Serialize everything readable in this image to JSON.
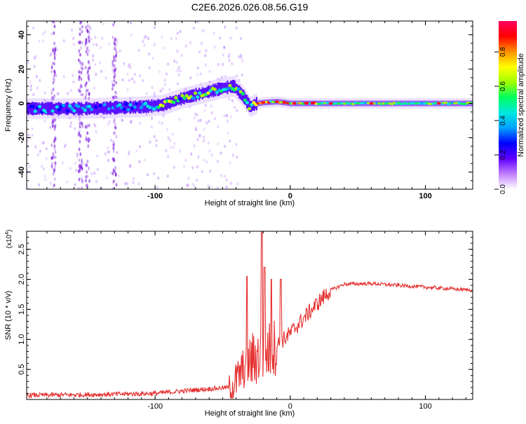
{
  "title": "C2E6.2026.026.08.56.G19",
  "chart_data": [
    {
      "type": "heatmap",
      "name": "spectrogram",
      "xlabel": "Height of straight line (km)",
      "ylabel": "Frequency (Hz)",
      "xlim": [
        -195,
        135
      ],
      "ylim": [
        -50,
        48
      ],
      "xticks": [
        -100,
        0,
        100
      ],
      "xtick_labels": [
        "-100",
        "0",
        "100"
      ],
      "yticks": [
        -40,
        -20,
        0,
        20,
        40
      ],
      "ytick_labels": [
        "-40",
        "-20",
        "0",
        "20",
        "40"
      ],
      "colorbar": {
        "label": "Normalized spectral amplitude",
        "range": [
          0.0,
          0.98
        ],
        "ticks": [
          0.0,
          0.2,
          0.4,
          0.6,
          0.8
        ],
        "tick_labels": [
          "0.0",
          "0.2",
          "0.4",
          "0.6",
          "0.8"
        ],
        "colormap": [
          "#ffffff",
          "#c080ff",
          "#6000ff",
          "#0000ff",
          "#00a0ff",
          "#00e8e0",
          "#00ff60",
          "#a0ff00",
          "#ffff00",
          "#ff9000",
          "#ff0000",
          "#ff0060"
        ]
      },
      "ridge": {
        "x": [
          -195,
          -170,
          -150,
          -130,
          -110,
          -95,
          -80,
          -65,
          -50,
          -42,
          -35,
          -30,
          -25,
          -20,
          -10,
          0,
          20,
          60,
          100,
          135
        ],
        "frequency": [
          -3,
          -3,
          -3,
          -2.5,
          -2,
          -1,
          3,
          6,
          9,
          10,
          4,
          -2,
          0,
          0.5,
          1,
          0,
          0,
          0,
          0,
          0
        ]
      }
    },
    {
      "type": "line",
      "name": "snr",
      "xlabel": "Height of straight line (km)",
      "ylabel": "SNR (10 * v/v)",
      "y_multiplier": "(x10",
      "y_multiplier_exp": "4",
      "y_multiplier_close": ")",
      "xlim": [
        -195,
        135
      ],
      "ylim": [
        0.0,
        2.8
      ],
      "xticks": [
        -100,
        0,
        100
      ],
      "xtick_labels": [
        "-100",
        "0",
        "100"
      ],
      "yticks": [
        0.5,
        1.0,
        1.5,
        2.0,
        2.5
      ],
      "ytick_labels": [
        "0.5",
        "1.0",
        "1.5",
        "2.0",
        "2.5"
      ],
      "line_color": "#e53030",
      "trend": {
        "x": [
          -195,
          -150,
          -100,
          -70,
          -45,
          -40,
          -35,
          -30,
          -25,
          -20,
          -10,
          0,
          10,
          20,
          30,
          40,
          60,
          80,
          100,
          120,
          135
        ],
        "y": [
          0.07,
          0.08,
          0.1,
          0.16,
          0.2,
          0.3,
          0.5,
          0.6,
          0.7,
          0.75,
          0.9,
          1.1,
          1.35,
          1.6,
          1.82,
          1.92,
          1.93,
          1.9,
          1.87,
          1.84,
          1.82
        ]
      },
      "peaks": [
        {
          "x": -32,
          "y": 2.05
        },
        {
          "x": -21,
          "y": 2.8
        },
        {
          "x": -19,
          "y": 2.2
        },
        {
          "x": -14,
          "y": 2.0
        },
        {
          "x": -7,
          "y": 2.0
        }
      ]
    }
  ]
}
